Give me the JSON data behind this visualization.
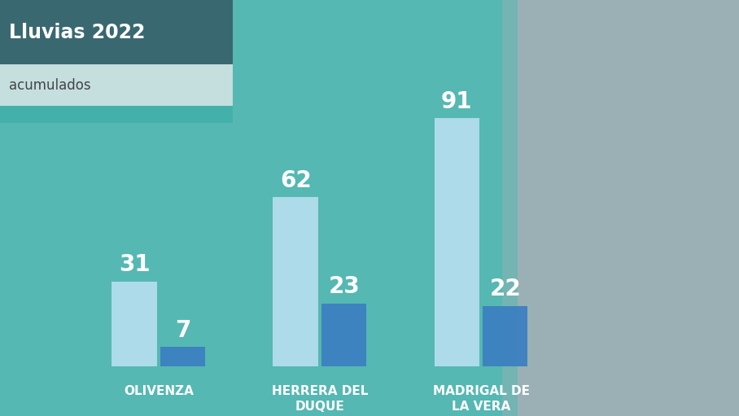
{
  "title": "Lluvias 2022",
  "subtitle": "acumulados",
  "categories": [
    "OLIVENZA",
    "HERRERA DEL\nDUQUE",
    "MADRIGAL DE\nLA VERA"
  ],
  "bar1_values": [
    31,
    62,
    91
  ],
  "bar2_values": [
    7,
    23,
    22
  ],
  "bar1_color": "#b8dff0",
  "bar2_color": "#3a7fc1",
  "title_bg_color": "#3a6870",
  "subtitle_bg_color": "#c5dede",
  "title_text_color": "#ffffff",
  "subtitle_text_color": "#444444",
  "label_color": "#ffffff",
  "cat_label_color": "#ffffff",
  "bg_color_teal": "#55b8b2",
  "bg_color_photo": "#8a9fa0",
  "label_fontsize": 20,
  "cat_fontsize": 11,
  "bar_width": 0.28,
  "ylim": [
    0,
    110
  ],
  "fig_width": 9.08,
  "fig_height": 5.11,
  "title_fontsize": 17,
  "subtitle_fontsize": 12
}
